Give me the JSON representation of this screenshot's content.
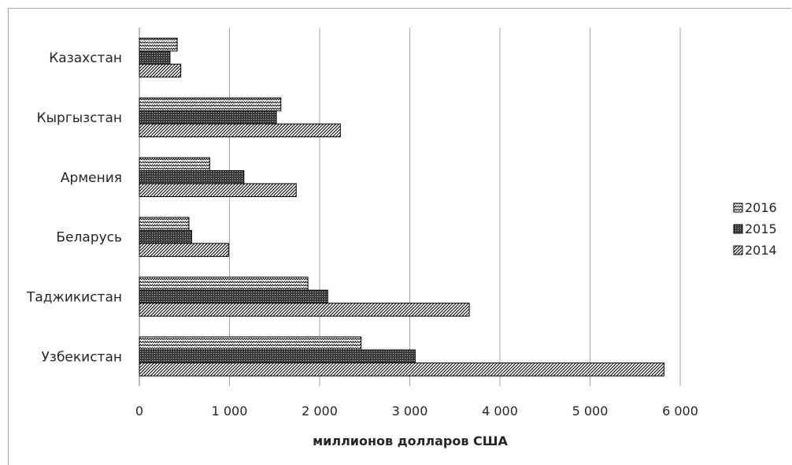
{
  "chart_data": {
    "type": "bar",
    "orientation": "horizontal",
    "title": "",
    "xlabel": "миллионов долларов США",
    "ylabel": "",
    "categories": [
      "Узбекистан",
      "Таджикистан",
      "Беларусь",
      "Армения",
      "Кыргызстан",
      "Казахстан"
    ],
    "series": [
      {
        "name": "2014",
        "values": [
          5820,
          3660,
          990,
          1740,
          2230,
          460
        ]
      },
      {
        "name": "2015",
        "values": [
          3060,
          2090,
          580,
          1160,
          1520,
          340
        ]
      },
      {
        "name": "2016",
        "values": [
          2460,
          1870,
          550,
          780,
          1570,
          420
        ]
      }
    ],
    "xlim": [
      0,
      6000
    ],
    "x_ticks": [
      0,
      1000,
      2000,
      3000,
      4000,
      5000,
      6000
    ],
    "x_tick_labels": [
      "0",
      "1 000",
      "2 000",
      "3 000",
      "4 000",
      "5 000",
      "6 000"
    ],
    "grid": "vertical",
    "legend_position": "right",
    "legend_order": [
      "2016",
      "2015",
      "2014"
    ],
    "patterns": {
      "2014": "diagonal-hatch",
      "2015": "dense-crosshatch",
      "2016": "zigzag"
    },
    "colors": {
      "bar_outline": "#000000",
      "gridline": "#a6a6a6",
      "text": "#262626"
    }
  }
}
